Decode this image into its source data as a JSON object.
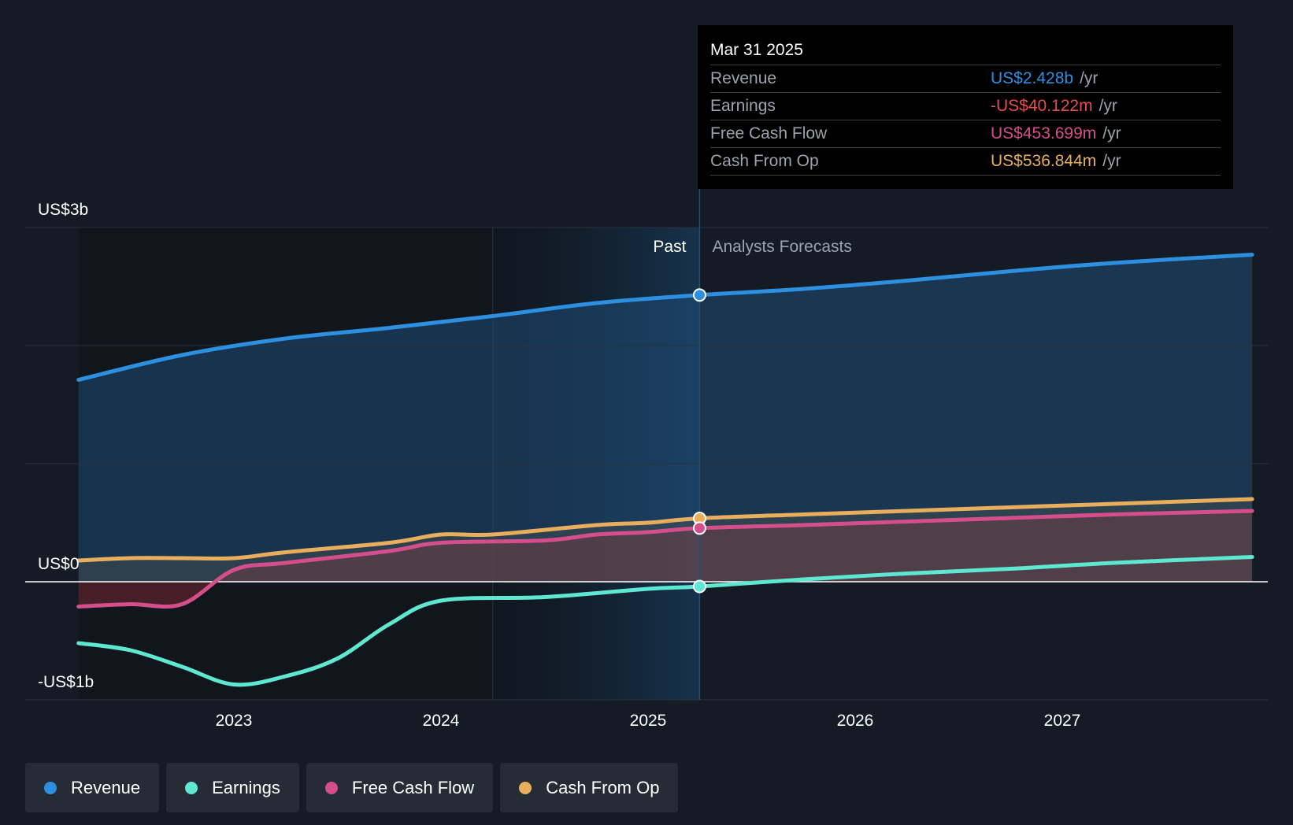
{
  "chart_data": {
    "type": "line",
    "x_axis": {
      "ticks": [
        "2023",
        "2024",
        "2025",
        "2026",
        "2027"
      ],
      "range": [
        "2022-04",
        "2027-12"
      ]
    },
    "y_axis": {
      "ticks": [
        "US$3b",
        "US$0",
        "-US$1b"
      ],
      "range": [
        -1.0,
        3.0
      ],
      "unit": "US$ billions",
      "grid": true
    },
    "regions": {
      "past_label": "Past",
      "forecast_label": "Analysts Forecasts",
      "divider_date": "2025-03-31"
    },
    "series": [
      {
        "name": "Revenue",
        "color": "#2d8fe0",
        "points": [
          [
            "2022-04",
            1.71
          ],
          [
            "2022-10",
            1.92
          ],
          [
            "2023-04",
            2.06
          ],
          [
            "2023-10",
            2.15
          ],
          [
            "2024-04",
            2.25
          ],
          [
            "2024-10",
            2.36
          ],
          [
            "2025-03-31",
            2.428
          ],
          [
            "2025-10",
            2.48
          ],
          [
            "2026-04",
            2.55
          ],
          [
            "2026-10",
            2.63
          ],
          [
            "2027-04",
            2.7
          ],
          [
            "2027-12",
            2.77
          ]
        ]
      },
      {
        "name": "Earnings",
        "color": "#5ee8d2",
        "points": [
          [
            "2022-04",
            -0.52
          ],
          [
            "2022-07",
            -0.58
          ],
          [
            "2022-10",
            -0.72
          ],
          [
            "2023-01",
            -0.87
          ],
          [
            "2023-04",
            -0.8
          ],
          [
            "2023-07",
            -0.65
          ],
          [
            "2023-10",
            -0.36
          ],
          [
            "2024-01",
            -0.16
          ],
          [
            "2024-07",
            -0.13
          ],
          [
            "2025-01",
            -0.06
          ],
          [
            "2025-03-31",
            -0.04
          ],
          [
            "2025-10",
            0.02
          ],
          [
            "2026-04",
            0.07
          ],
          [
            "2026-10",
            0.11
          ],
          [
            "2027-04",
            0.16
          ],
          [
            "2027-12",
            0.21
          ]
        ]
      },
      {
        "name": "Free Cash Flow",
        "color": "#d44e8b",
        "points": [
          [
            "2022-04",
            -0.21
          ],
          [
            "2022-07",
            -0.19
          ],
          [
            "2022-10",
            -0.19
          ],
          [
            "2023-01",
            0.1
          ],
          [
            "2023-04",
            0.16
          ],
          [
            "2023-10",
            0.26
          ],
          [
            "2024-01",
            0.33
          ],
          [
            "2024-07",
            0.35
          ],
          [
            "2024-10",
            0.4
          ],
          [
            "2025-01",
            0.42
          ],
          [
            "2025-03-31",
            0.454
          ],
          [
            "2025-10",
            0.48
          ],
          [
            "2026-04",
            0.51
          ],
          [
            "2026-10",
            0.54
          ],
          [
            "2027-04",
            0.57
          ],
          [
            "2027-12",
            0.6
          ]
        ]
      },
      {
        "name": "Cash From Op",
        "color": "#e8ae5e",
        "points": [
          [
            "2022-04",
            0.18
          ],
          [
            "2022-07",
            0.2
          ],
          [
            "2022-10",
            0.2
          ],
          [
            "2023-01",
            0.2
          ],
          [
            "2023-04",
            0.25
          ],
          [
            "2023-10",
            0.33
          ],
          [
            "2024-01",
            0.4
          ],
          [
            "2024-04",
            0.4
          ],
          [
            "2024-10",
            0.48
          ],
          [
            "2025-01",
            0.5
          ],
          [
            "2025-03-31",
            0.537
          ],
          [
            "2025-10",
            0.57
          ],
          [
            "2026-04",
            0.6
          ],
          [
            "2026-10",
            0.63
          ],
          [
            "2027-04",
            0.66
          ],
          [
            "2027-12",
            0.7
          ]
        ]
      }
    ],
    "tooltip": {
      "date": "Mar 31 2025",
      "rows": [
        {
          "label": "Revenue",
          "value": "US$2.428b",
          "unit": "/yr",
          "color": "#2d8fe0"
        },
        {
          "label": "Earnings",
          "value": "-US$40.122m",
          "unit": "/yr",
          "color": "#e84d4d"
        },
        {
          "label": "Free Cash Flow",
          "value": "US$453.699m",
          "unit": "/yr",
          "color": "#d44e8b"
        },
        {
          "label": "Cash From Op",
          "value": "US$536.844m",
          "unit": "/yr",
          "color": "#e8ae5e"
        }
      ]
    },
    "legend": [
      {
        "name": "Revenue",
        "color": "#2d8fe0"
      },
      {
        "name": "Earnings",
        "color": "#5ee8d2"
      },
      {
        "name": "Free Cash Flow",
        "color": "#d44e8b"
      },
      {
        "name": "Cash From Op",
        "color": "#e8ae5e"
      }
    ]
  }
}
